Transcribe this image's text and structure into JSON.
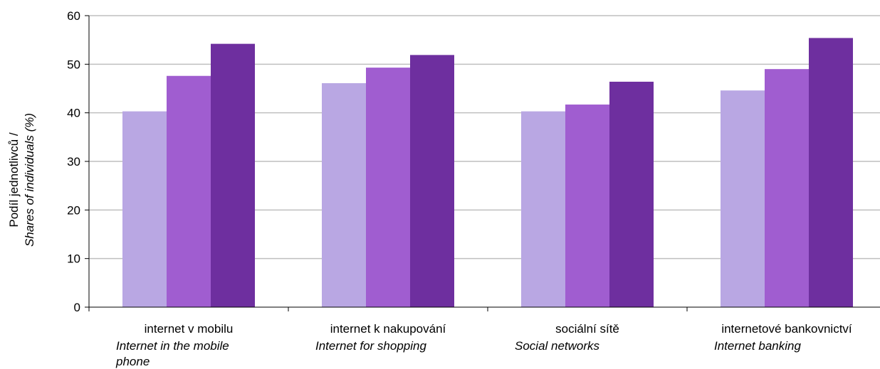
{
  "chart_data": {
    "type": "bar",
    "categories": [
      {
        "cs": "internet v mobilu",
        "en": [
          "Internet in the mobile",
          "phone"
        ]
      },
      {
        "cs": "internet k nakupování",
        "en": [
          "Internet for shopping"
        ]
      },
      {
        "cs": "sociální sítě",
        "en": [
          "Social networks"
        ]
      },
      {
        "cs": "internetové bankovnictví",
        "en": [
          "Internet banking"
        ]
      }
    ],
    "series": [
      {
        "values": [
          40.3,
          46.1,
          40.3,
          44.6
        ]
      },
      {
        "values": [
          47.6,
          49.3,
          41.7,
          49.0
        ]
      },
      {
        "values": [
          54.2,
          51.9,
          46.4,
          55.4
        ]
      }
    ],
    "colors": [
      "#b9a7e3",
      "#a05dd0",
      "#6e2f9f"
    ],
    "ylabel": {
      "cs": "Podíl jednotlivců /",
      "en": "Shares of individuals (%)"
    },
    "ylim": [
      0,
      60
    ],
    "yticks": [
      0,
      10,
      20,
      30,
      40,
      50,
      60
    ],
    "grid": true
  }
}
